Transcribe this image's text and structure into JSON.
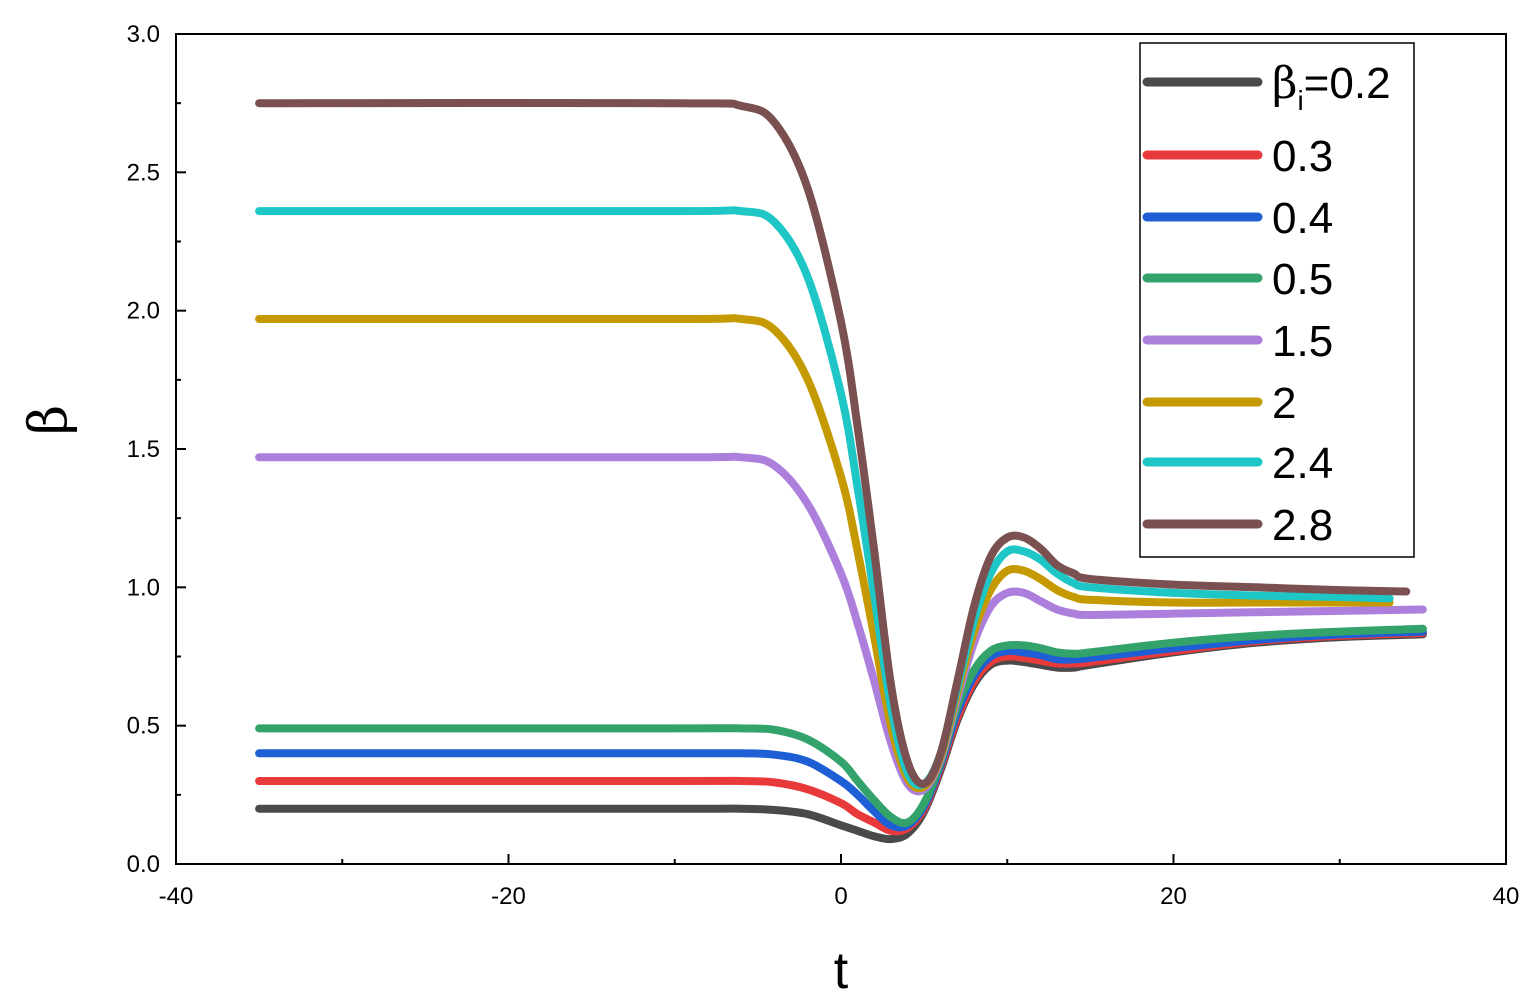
{
  "chart_data": {
    "type": "line",
    "xlabel": "t",
    "ylabel": "β",
    "xlim": [
      -40,
      40
    ],
    "ylim": [
      0,
      3
    ],
    "x_ticks": [
      -40,
      -20,
      0,
      20,
      40
    ],
    "x_tick_labels": [
      "-40",
      "-20",
      "0",
      "20",
      "40"
    ],
    "y_ticks": [
      0,
      0.5,
      1,
      1.5,
      2,
      2.5,
      3
    ],
    "y_tick_labels": [
      "0.0",
      "0.5",
      "1.0",
      "1.5",
      "2.0",
      "2.5",
      "3.0"
    ],
    "grid": false,
    "legend_placement": "top-right",
    "legend_title_prefix": "β",
    "legend_title_subscript": "i",
    "legend_first_suffix": "=0.2",
    "series": [
      {
        "name": "0.2",
        "color": "#4a4a4a",
        "x": [
          -35,
          -10,
          -6,
          -4,
          -2,
          0,
          1,
          2,
          3,
          4,
          5,
          6,
          7,
          8,
          9,
          10,
          11,
          12,
          13,
          14,
          15,
          20,
          25,
          30,
          35
        ],
        "y": [
          0.2,
          0.2,
          0.2,
          0.195,
          0.18,
          0.14,
          0.12,
          0.1,
          0.09,
          0.11,
          0.19,
          0.34,
          0.52,
          0.65,
          0.72,
          0.735,
          0.73,
          0.72,
          0.71,
          0.71,
          0.72,
          0.765,
          0.8,
          0.82,
          0.83
        ]
      },
      {
        "name": "0.3",
        "color": "#e8393b",
        "x": [
          -35,
          -10,
          -6,
          -4,
          -2,
          0,
          1,
          2,
          3,
          4,
          5,
          6,
          7,
          8,
          9,
          10,
          11,
          12,
          13,
          14,
          15,
          20,
          25,
          30,
          35
        ],
        "y": [
          0.3,
          0.3,
          0.3,
          0.295,
          0.27,
          0.22,
          0.18,
          0.15,
          0.12,
          0.13,
          0.2,
          0.35,
          0.53,
          0.66,
          0.73,
          0.75,
          0.745,
          0.735,
          0.725,
          0.725,
          0.73,
          0.77,
          0.805,
          0.825,
          0.835
        ]
      },
      {
        "name": "0.4",
        "color": "#1f5fd6",
        "x": [
          -35,
          -10,
          -6,
          -4,
          -2,
          0,
          1,
          2,
          3,
          4,
          5,
          6,
          7,
          8,
          9,
          10,
          11,
          12,
          13,
          14,
          15,
          20,
          25,
          30,
          35
        ],
        "y": [
          0.4,
          0.4,
          0.4,
          0.395,
          0.37,
          0.3,
          0.25,
          0.19,
          0.14,
          0.14,
          0.21,
          0.36,
          0.55,
          0.68,
          0.75,
          0.77,
          0.765,
          0.755,
          0.74,
          0.74,
          0.745,
          0.78,
          0.81,
          0.83,
          0.84
        ]
      },
      {
        "name": "0.5",
        "color": "#33a36b",
        "x": [
          -35,
          -10,
          -6,
          -4,
          -2,
          0,
          1,
          2,
          3,
          4,
          5,
          6,
          7,
          8,
          9,
          10,
          11,
          12,
          13,
          14,
          15,
          20,
          25,
          30,
          35
        ],
        "y": [
          0.49,
          0.49,
          0.49,
          0.485,
          0.45,
          0.37,
          0.3,
          0.23,
          0.17,
          0.15,
          0.22,
          0.37,
          0.57,
          0.7,
          0.77,
          0.79,
          0.79,
          0.78,
          0.765,
          0.76,
          0.765,
          0.8,
          0.825,
          0.84,
          0.85
        ]
      },
      {
        "name": "1.5",
        "color": "#ad7fdd",
        "x": [
          -35,
          -10,
          -6,
          -4,
          -2,
          0,
          1,
          2,
          3,
          4,
          5,
          6,
          7,
          8,
          9,
          10,
          11,
          12,
          13,
          14,
          15,
          20,
          25,
          30,
          35
        ],
        "y": [
          1.47,
          1.47,
          1.47,
          1.44,
          1.3,
          1.05,
          0.87,
          0.66,
          0.44,
          0.29,
          0.27,
          0.38,
          0.6,
          0.8,
          0.93,
          0.98,
          0.98,
          0.95,
          0.92,
          0.905,
          0.9,
          0.905,
          0.91,
          0.915,
          0.92
        ]
      },
      {
        "name": "2",
        "color": "#c49a00",
        "x": [
          -35,
          -10,
          -6,
          -4,
          -2,
          0,
          1,
          2,
          3,
          4,
          5,
          6,
          7,
          8,
          9,
          10,
          11,
          12,
          13,
          14,
          15,
          20,
          25,
          30,
          33
        ],
        "y": [
          1.97,
          1.97,
          1.97,
          1.93,
          1.75,
          1.4,
          1.13,
          0.82,
          0.5,
          0.31,
          0.28,
          0.39,
          0.62,
          0.84,
          0.99,
          1.06,
          1.06,
          1.03,
          0.99,
          0.965,
          0.955,
          0.945,
          0.945,
          0.945,
          0.945
        ]
      },
      {
        "name": "2.4",
        "color": "#1ec6c6",
        "x": [
          -35,
          -10,
          -6,
          -4,
          -2,
          0,
          1,
          2,
          3,
          4,
          5,
          6,
          7,
          8,
          9,
          10,
          11,
          12,
          13,
          14,
          15,
          20,
          25,
          30,
          33
        ],
        "y": [
          2.36,
          2.36,
          2.36,
          2.32,
          2.12,
          1.7,
          1.36,
          0.97,
          0.57,
          0.33,
          0.29,
          0.4,
          0.64,
          0.88,
          1.05,
          1.13,
          1.13,
          1.1,
          1.05,
          1.015,
          1.0,
          0.98,
          0.97,
          0.965,
          0.96
        ]
      },
      {
        "name": "2.8",
        "color": "#7a5050",
        "x": [
          -35,
          -10,
          -6,
          -4,
          -2,
          0,
          1,
          2,
          3,
          4,
          5,
          6,
          7,
          8,
          9,
          10,
          11,
          12,
          13,
          14,
          15,
          20,
          25,
          30,
          34
        ],
        "y": [
          2.75,
          2.75,
          2.74,
          2.68,
          2.44,
          1.96,
          1.58,
          1.13,
          0.65,
          0.37,
          0.29,
          0.4,
          0.66,
          0.93,
          1.11,
          1.18,
          1.18,
          1.14,
          1.08,
          1.05,
          1.03,
          1.01,
          1.0,
          0.99,
          0.985
        ]
      }
    ]
  }
}
